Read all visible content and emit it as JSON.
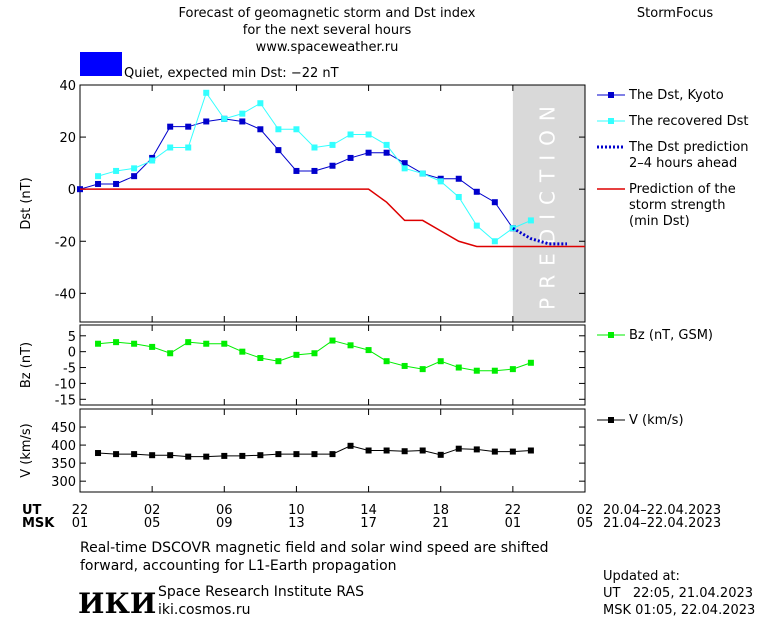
{
  "header": {
    "title_lines": [
      "Forecast of geomagnetic storm and Dst index",
      "for the next several hours",
      "www.spaceweather.ru"
    ],
    "brand": "StormFocus"
  },
  "status": {
    "label": "Quiet, expected min Dst: −22 nT",
    "color": "#0000ff"
  },
  "chart_data": [
    {
      "type": "line",
      "ylabel": "Dst (nT)",
      "xlim": [
        0,
        28
      ],
      "ylim": [
        -51,
        40
      ],
      "yticks": [
        -40,
        -20,
        0,
        20,
        40
      ],
      "shaded": {
        "label": "PREDICTION",
        "x": [
          24,
          28
        ],
        "color": "#d9d9d9"
      },
      "series": [
        {
          "name": "The Dst, Kyoto",
          "color": "#0000cc",
          "marker": "square",
          "line": "solid",
          "x": [
            0,
            1,
            2,
            3,
            4,
            5,
            6,
            7,
            8,
            9,
            10,
            11,
            12,
            13,
            14,
            15,
            16,
            17,
            18,
            19,
            20,
            21,
            22,
            23,
            24
          ],
          "values": [
            0,
            2,
            2,
            5,
            12,
            24,
            24,
            26,
            27,
            26,
            23,
            15,
            7,
            7,
            9,
            12,
            14,
            14,
            10,
            6,
            4,
            4,
            -1,
            -5,
            -15
          ]
        },
        {
          "name": "The recovered Dst",
          "color": "#33ffff",
          "marker": "square",
          "line": "solid",
          "x": [
            1,
            2,
            3,
            4,
            5,
            6,
            7,
            8,
            9,
            10,
            11,
            12,
            13,
            14,
            15,
            16,
            17,
            18,
            19,
            20,
            21,
            22,
            23,
            24,
            25
          ],
          "values": [
            5,
            7,
            8,
            11,
            16,
            16,
            37,
            27,
            29,
            33,
            23,
            23,
            16,
            17,
            21,
            21,
            17,
            8,
            6,
            3,
            -3,
            -14,
            -20,
            -15,
            -12
          ]
        },
        {
          "name": "The Dst prediction\n2–4 hours ahead",
          "color": "#0000cc",
          "marker": "none",
          "line": "dotted",
          "x": [
            24,
            25,
            26,
            27
          ],
          "values": [
            -15,
            -19,
            -21,
            -21
          ]
        },
        {
          "name": "Prediction of the\nstorm strength\n(min Dst)",
          "color": "#dd0000",
          "marker": "none",
          "line": "solid",
          "x": [
            0,
            16,
            17,
            18,
            19,
            20,
            21,
            22,
            28
          ],
          "values": [
            0,
            0,
            -5,
            -12,
            -12,
            -16,
            -20,
            -22,
            -22
          ]
        }
      ]
    },
    {
      "type": "line",
      "ylabel": "Bz (nT)",
      "xlim": [
        0,
        28
      ],
      "ylim": [
        -16.8,
        8.4
      ],
      "yticks": [
        -15,
        -10,
        -5,
        0,
        5
      ],
      "series": [
        {
          "name": "Bz (nT, GSM)",
          "color": "#00ee00",
          "marker": "square",
          "line": "solid",
          "x": [
            1,
            2,
            3,
            4,
            5,
            6,
            7,
            8,
            9,
            10,
            11,
            12,
            13,
            14,
            15,
            16,
            17,
            18,
            19,
            20,
            21,
            22,
            23,
            24,
            25
          ],
          "values": [
            2.5,
            3,
            2.5,
            1.5,
            -0.5,
            3,
            2.5,
            2.5,
            0,
            -2,
            -3,
            -1,
            -0.5,
            3.5,
            2,
            0.5,
            -3,
            -4.5,
            -5.5,
            -3,
            -5,
            -6,
            -6,
            -5.5,
            -3.5
          ]
        }
      ]
    },
    {
      "type": "line",
      "ylabel": "V (km/s)",
      "xlim": [
        0,
        28
      ],
      "ylim": [
        270,
        500
      ],
      "yticks": [
        300,
        350,
        400,
        450
      ],
      "xticks": [
        {
          "value": 0,
          "label": "22"
        },
        {
          "value": 4,
          "label": "02"
        },
        {
          "value": 8,
          "label": "06"
        },
        {
          "value": 12,
          "label": "10"
        },
        {
          "value": 16,
          "label": "14"
        },
        {
          "value": 20,
          "label": "18"
        },
        {
          "value": 24,
          "label": "22"
        },
        {
          "value": 28,
          "label": "02"
        }
      ],
      "xticks_msk": [
        {
          "value": 0,
          "label": "01"
        },
        {
          "value": 4,
          "label": "05"
        },
        {
          "value": 8,
          "label": "09"
        },
        {
          "value": 12,
          "label": "13"
        },
        {
          "value": 16,
          "label": "17"
        },
        {
          "value": 20,
          "label": "21"
        },
        {
          "value": 24,
          "label": "01"
        },
        {
          "value": 28,
          "label": "05"
        }
      ],
      "series": [
        {
          "name": "V (km/s)",
          "color": "#000000",
          "marker": "square",
          "line": "solid",
          "x": [
            1,
            2,
            3,
            4,
            5,
            6,
            7,
            8,
            9,
            10,
            11,
            12,
            13,
            14,
            15,
            16,
            17,
            18,
            19,
            20,
            21,
            22,
            23,
            24,
            25
          ],
          "values": [
            378,
            375,
            375,
            372,
            372,
            368,
            368,
            370,
            370,
            372,
            375,
            375,
            375,
            375,
            398,
            385,
            385,
            383,
            385,
            373,
            390,
            388,
            382,
            382,
            385
          ]
        }
      ]
    }
  ],
  "axis_rows": {
    "ut_label": "UT",
    "msk_label": "MSK",
    "ut_range": "20.04–22.04.2023",
    "msk_range": "21.04–22.04.2023"
  },
  "footer": {
    "note_lines": [
      "Real-time DSCOVR magnetic field and solar wind speed are shifted",
      "forward, accounting for L1-Earth propagation"
    ],
    "logo": "ИКИ",
    "institute": "Space Research Institute RAS",
    "url": "iki.cosmos.ru",
    "updated_title": "Updated at:",
    "updated_ut": "UT   22:05, 21.04.2023",
    "updated_msk": "MSK 01:05, 22.04.2023"
  }
}
